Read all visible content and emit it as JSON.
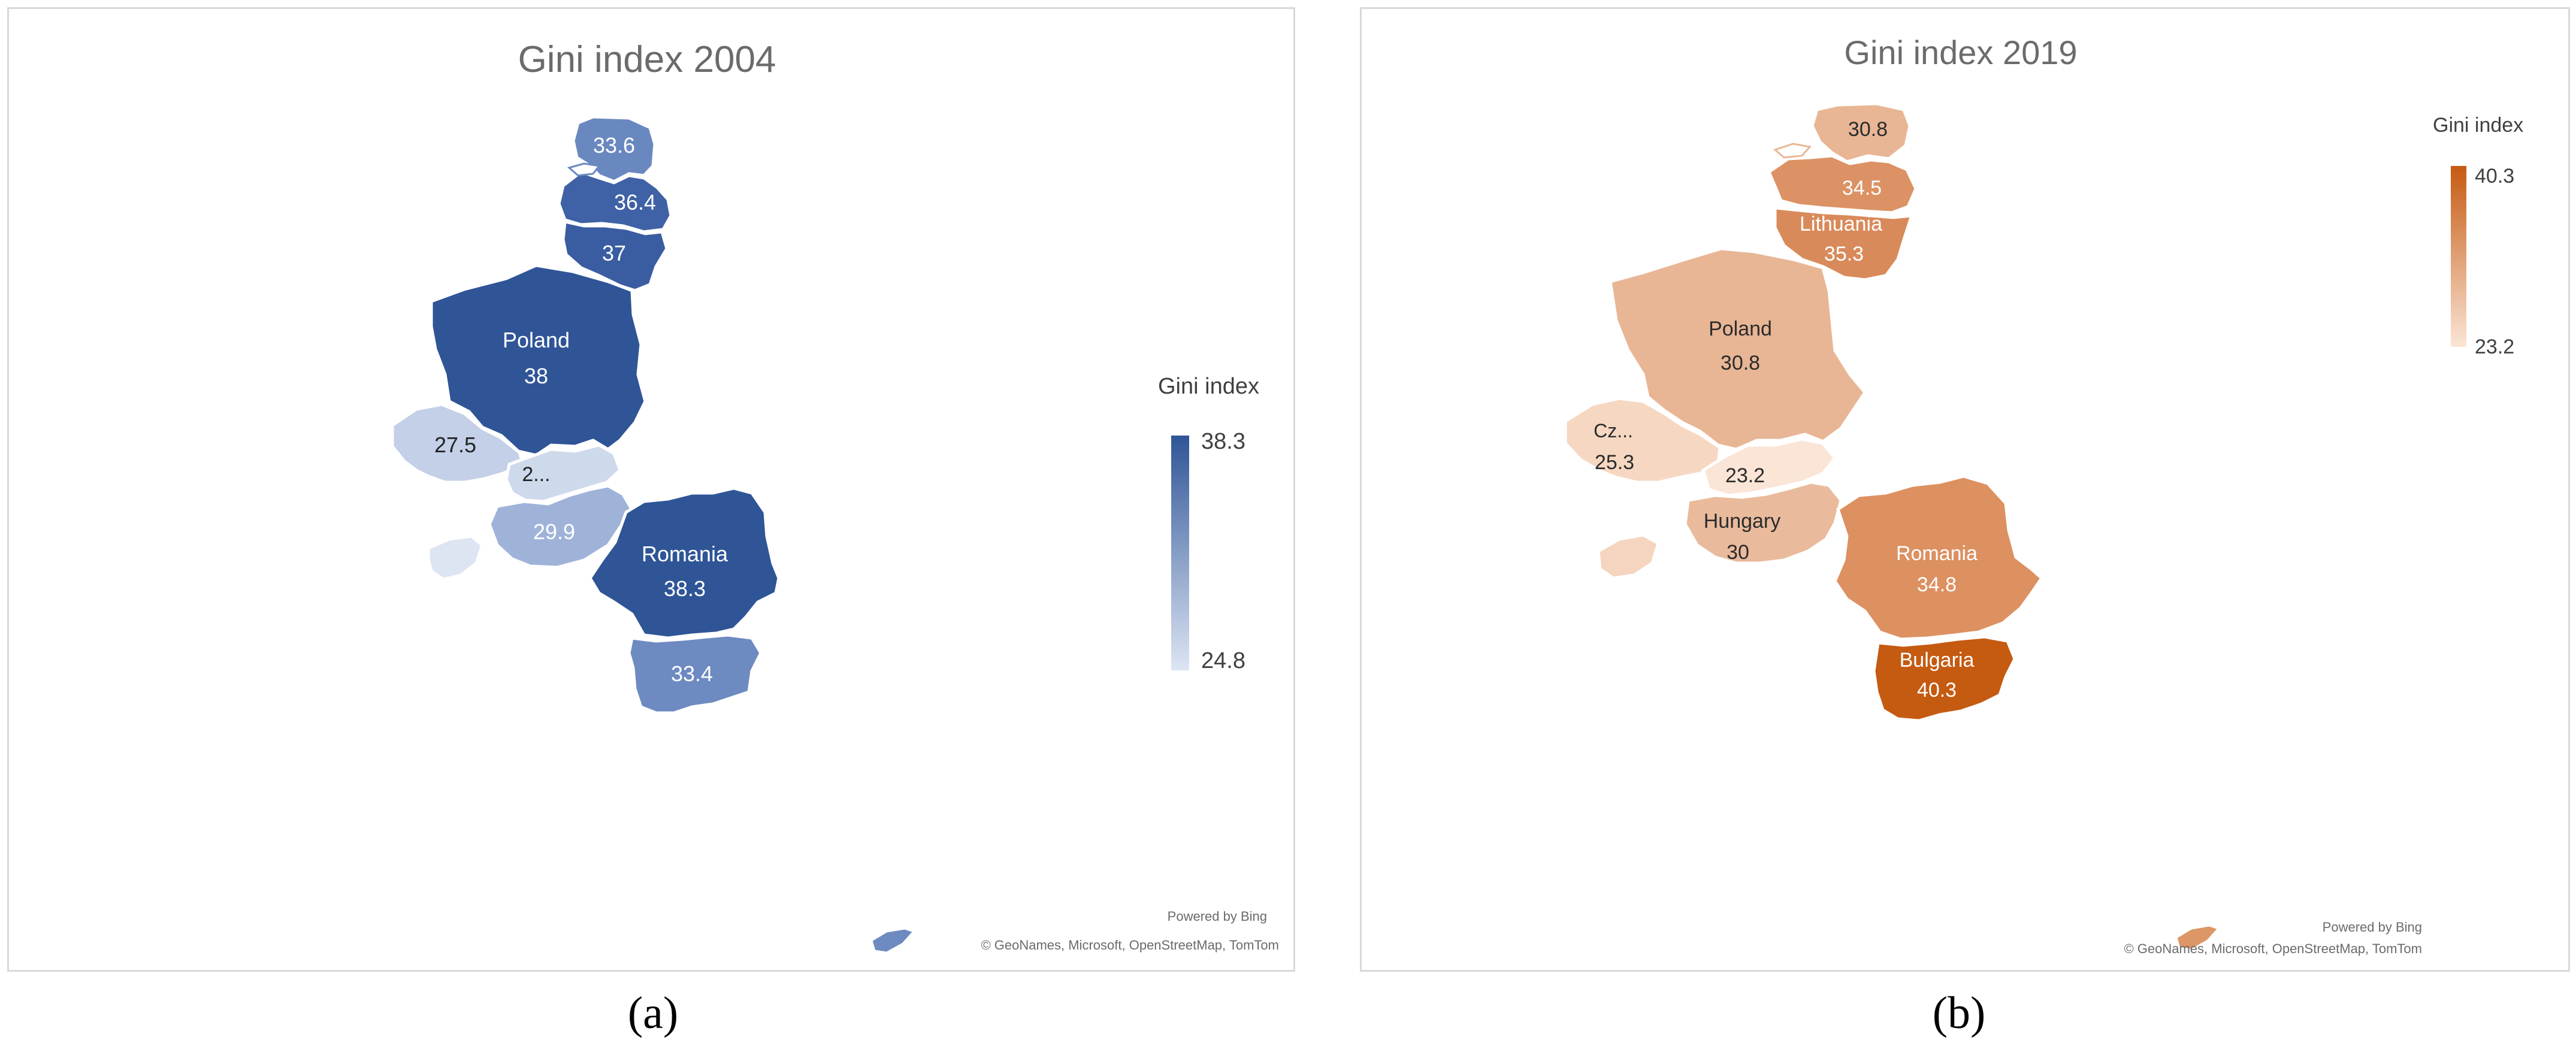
{
  "panels": [
    {
      "id": "a",
      "sublabel": "(a)",
      "title": "Gini index 2004",
      "legend": {
        "title": "Gini index",
        "max": "38.3",
        "min": "24.8",
        "max_color": "#2f5597",
        "min_color": "#dde5f3"
      },
      "regions": [
        {
          "name": "",
          "label": "33.6",
          "color": "#6a88c0"
        },
        {
          "name": "",
          "label": "36.4",
          "color": "#3f62a6"
        },
        {
          "name": "",
          "label": "37",
          "color": "#3a5da2"
        },
        {
          "name": "Poland",
          "label": "38",
          "color": "#2f5597"
        },
        {
          "name": "",
          "label": "27.5",
          "color": "#c4d0e8"
        },
        {
          "name": "",
          "label": "2...",
          "color": "#cfd9ec"
        },
        {
          "name": "",
          "label": "29.9",
          "color": "#9fb3d9"
        },
        {
          "name": "",
          "label": "",
          "color": "#dde5f3"
        },
        {
          "name": "Romania",
          "label": "38.3",
          "color": "#2f5597"
        },
        {
          "name": "",
          "label": "33.4",
          "color": "#6d8ac1"
        },
        {
          "name": "",
          "label": "",
          "color": "#6d8ac1"
        }
      ],
      "attribution": {
        "powered": "Powered by Bing",
        "credits": "© GeoNames, Microsoft, OpenStreetMap, TomTom"
      }
    },
    {
      "id": "b",
      "sublabel": "(b)",
      "title": "Gini index 2019",
      "legend": {
        "title": "Gini index",
        "max": "40.3",
        "min": "23.2",
        "max_color": "#c55a11",
        "min_color": "#fbe5d6"
      },
      "regions": [
        {
          "name": "",
          "label": "30.8",
          "color": "#e8b695"
        },
        {
          "name": "",
          "label": "34.5",
          "color": "#dc9264"
        },
        {
          "name": "Lithuania",
          "label": "35.3",
          "color": "#d98a5a"
        },
        {
          "name": "Poland",
          "label": "30.8",
          "color": "#e8b695"
        },
        {
          "name": "Cz...",
          "label": "25.3",
          "color": "#f6d8c2"
        },
        {
          "name": "",
          "label": "23.2",
          "color": "#fbe5d6"
        },
        {
          "name": "Hungary",
          "label": "30",
          "color": "#e9bb9c"
        },
        {
          "name": "",
          "label": "",
          "color": "#f5d5bf"
        },
        {
          "name": "Romania",
          "label": "34.8",
          "color": "#dd9060"
        },
        {
          "name": "Bulgaria",
          "label": "40.3",
          "color": "#c55a11"
        },
        {
          "name": "",
          "label": "",
          "color": "#dd9666"
        }
      ],
      "attribution": {
        "powered": "Powered by Bing",
        "credits": "© GeoNames, Microsoft, OpenStreetMap, TomTom"
      }
    }
  ]
}
